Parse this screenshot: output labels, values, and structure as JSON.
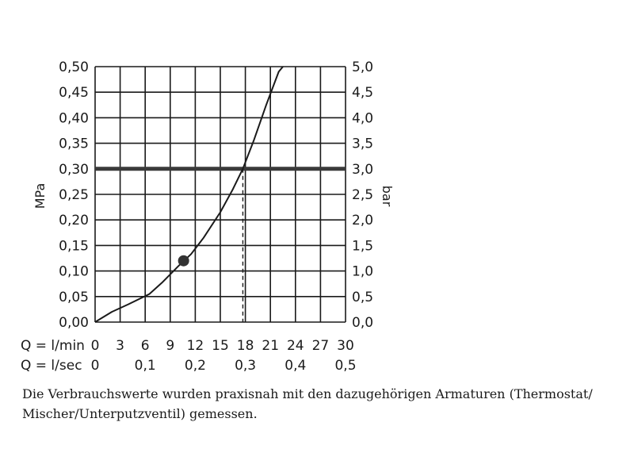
{
  "chart_data": {
    "type": "line",
    "ylabel_left": "MPa",
    "ylabel_right": "bar",
    "xlim": [
      0,
      30
    ],
    "ylim": [
      0,
      0.5
    ],
    "ylim_right": [
      0,
      5
    ],
    "grid": true,
    "y_ticks_left": [
      "0,00",
      "0,05",
      "0,10",
      "0,15",
      "0,20",
      "0,25",
      "0,30",
      "0,35",
      "0,40",
      "0,45",
      "0,50"
    ],
    "y_ticks_right": [
      "0,0",
      "0,5",
      "1,0",
      "1,5",
      "2,0",
      "2,5",
      "3,0",
      "3,5",
      "4,0",
      "4,5",
      "5,0"
    ],
    "x_axis_rows": [
      {
        "label": "Q = l/min",
        "ticks": [
          "0",
          "3",
          "6",
          "9",
          "12",
          "15",
          "18",
          "21",
          "24",
          "27",
          "30"
        ],
        "positions": [
          0,
          3,
          6,
          9,
          12,
          15,
          18,
          21,
          24,
          27,
          30
        ]
      },
      {
        "label": "Q = l/sec",
        "ticks": [
          "0",
          "0,1",
          "0,2",
          "0,3",
          "0,4",
          "0,5"
        ],
        "positions": [
          0,
          6,
          12,
          18,
          24,
          30
        ]
      }
    ],
    "series": [
      {
        "x": [
          0,
          2,
          4,
          6.5,
          8,
          10,
          11.5,
          13,
          15,
          16.5,
          17.7,
          19,
          20.5,
          22,
          22.5
        ],
        "y": [
          0,
          0.02,
          0.035,
          0.055,
          0.077,
          0.11,
          0.133,
          0.165,
          0.215,
          0.26,
          0.3,
          0.355,
          0.425,
          0.49,
          0.5
        ]
      }
    ],
    "reference_line": {
      "y": 0.3
    },
    "reference_drop": {
      "x": 17.7,
      "y": 0.3
    },
    "marker": {
      "x": 10.6,
      "y": 0.12
    }
  },
  "caption": {
    "line1": "Die Verbrauchswerte wurden praxisnah mit den dazugehörigen Armaturen (Thermostat/",
    "line2": "Mischer/Unterputzventil) gemessen."
  }
}
